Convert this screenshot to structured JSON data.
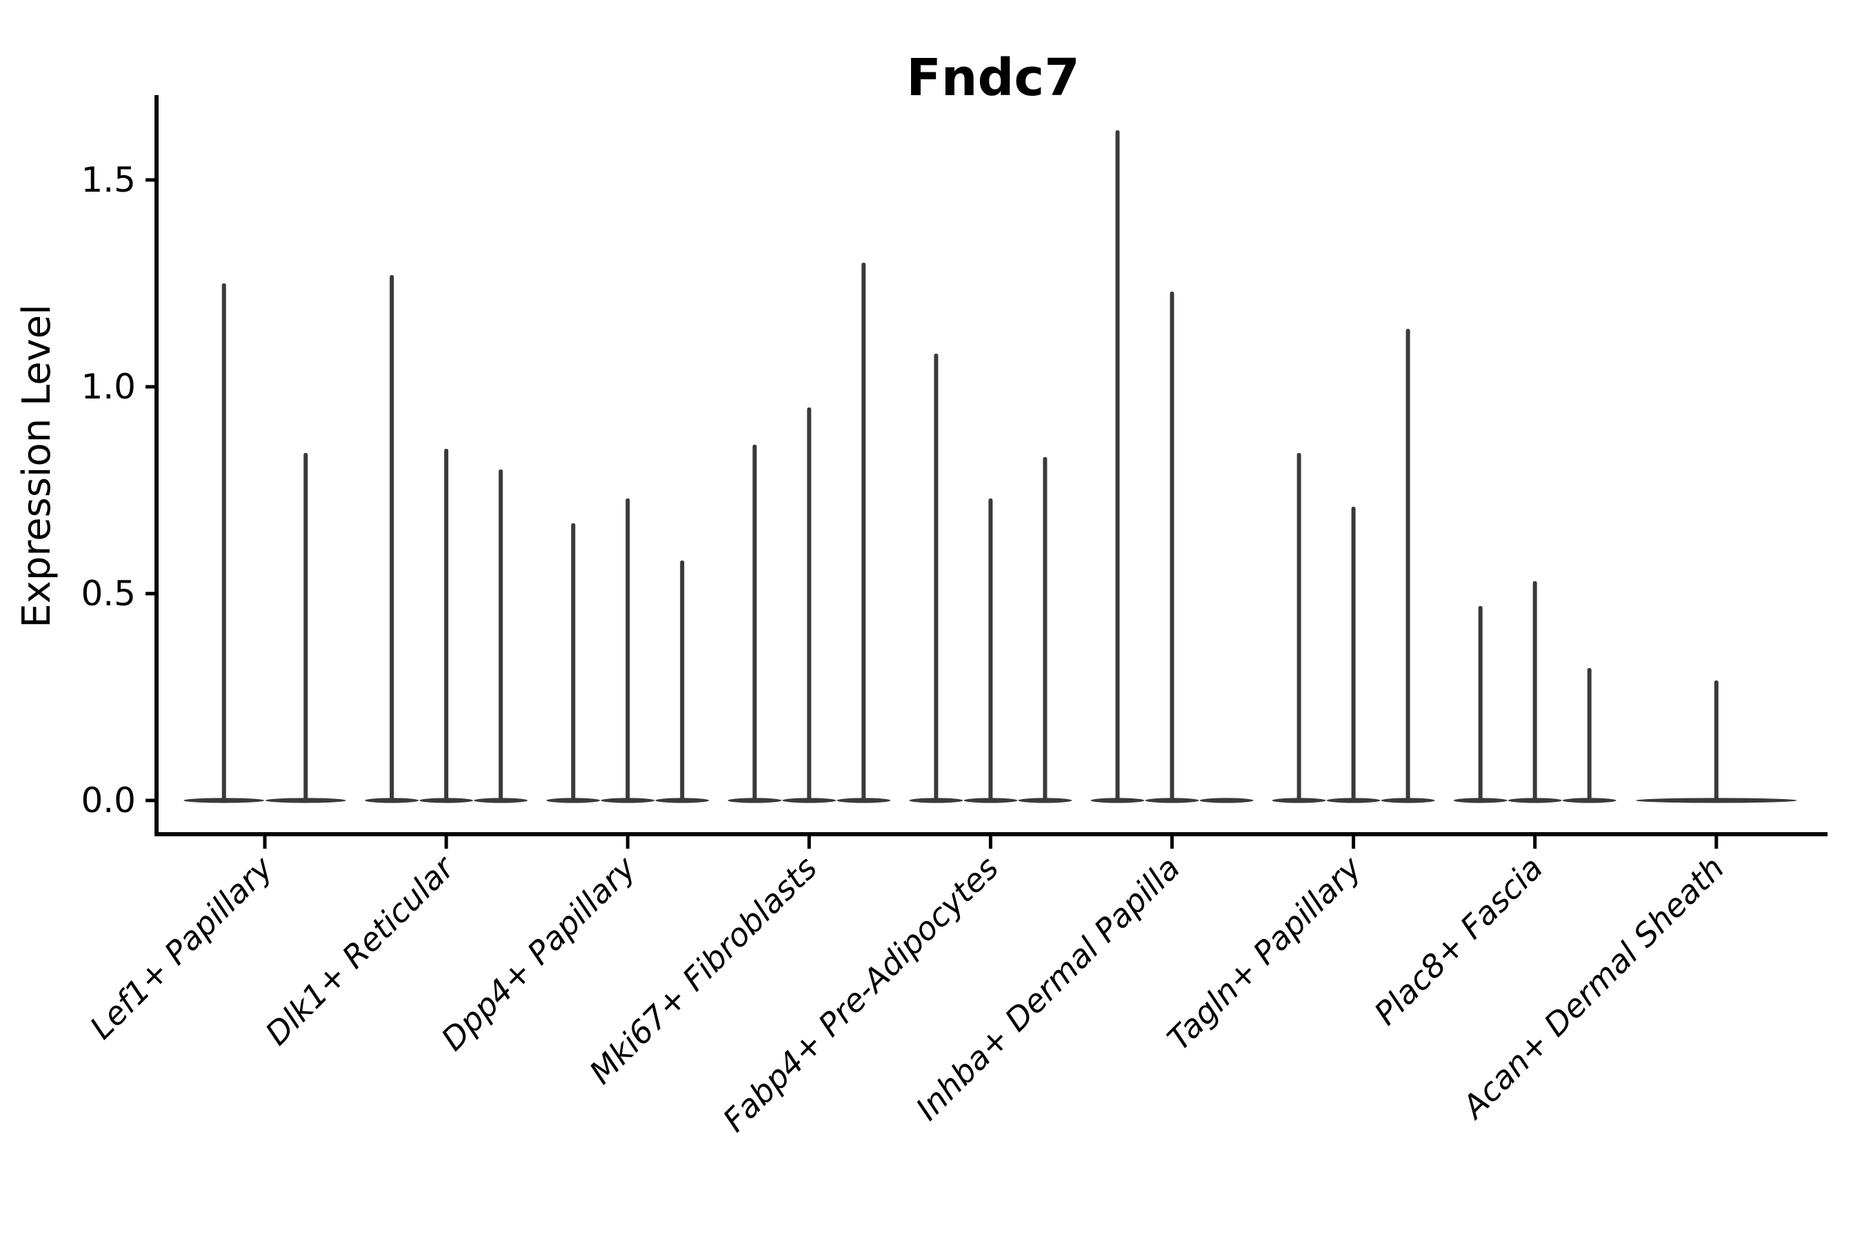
{
  "chart_data": {
    "type": "violin",
    "title": "Fndc7",
    "ylabel": "Expression Level",
    "xlabel": "",
    "grid": false,
    "legend": false,
    "background": "#ffffff",
    "ylim": [
      -0.08,
      1.7
    ],
    "yticks": [
      {
        "value": 0.0,
        "label": "0.0"
      },
      {
        "value": 0.5,
        "label": "0.5"
      },
      {
        "value": 1.0,
        "label": "1.0"
      },
      {
        "value": 1.5,
        "label": "1.5"
      }
    ],
    "note": "Each category shows 1-3 needle violins: distribution mass lies at 0 (flat lens base) with a thin spike up to the maximum expression value listed in violin_max.",
    "groups": [
      {
        "label": "Lef1+ Papillary",
        "violin_max": [
          1.25,
          0.84
        ]
      },
      {
        "label": "Dlk1+ Reticular",
        "violin_max": [
          1.27,
          0.85,
          0.8
        ]
      },
      {
        "label": "Dpp4+ Papillary",
        "violin_max": [
          0.67,
          0.73,
          0.58
        ]
      },
      {
        "label": "Mki67+ Fibroblasts",
        "violin_max": [
          0.86,
          0.95,
          1.3
        ]
      },
      {
        "label": "Fabp4+ Pre-Adipocytes",
        "violin_max": [
          1.08,
          0.73,
          0.83
        ]
      },
      {
        "label": "Inhba+ Dermal Papilla",
        "violin_max": [
          1.62,
          1.23,
          0.0
        ]
      },
      {
        "label": "Tagln+ Papillary",
        "violin_max": [
          0.84,
          0.71,
          1.14
        ]
      },
      {
        "label": "Plac8+ Fascia",
        "violin_max": [
          0.47,
          0.53,
          0.32
        ]
      },
      {
        "label": "Acan+ Dermal Sheath",
        "violin_max": [
          0.29
        ]
      }
    ],
    "colors": {
      "violin": "#3a3a3a",
      "axis": "#000000",
      "text": "#000000"
    }
  }
}
